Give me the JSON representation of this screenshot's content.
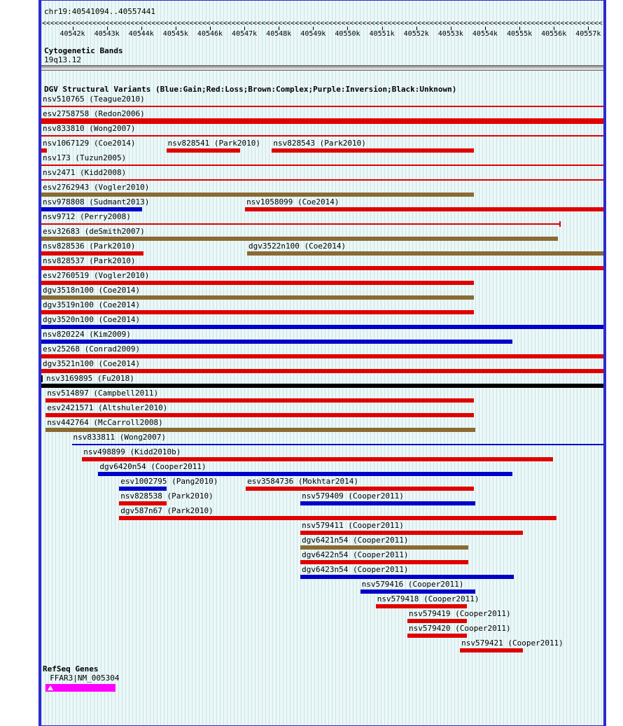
{
  "header": {
    "position_label": "chr19:40541094..40557441"
  },
  "sections": {
    "cytoband_header": "Cytogenetic Bands",
    "dgv_header": "DGV Structural Variants (Blue:Gain;Red:Loss;Brown:Complex;Purple:Inversion;Black:Unknown)",
    "refseq_header": "RefSeq Genes"
  },
  "chart_data": {
    "type": "genome-interval-track",
    "chrom": "chr19",
    "region_start": 40541094,
    "region_end": 40557441,
    "region_label": "chr19:40541094..40557441",
    "cytoband": "19q13.12",
    "direction_arrow": "<",
    "ticks": [
      {
        "bp": 40542000,
        "label": "40542k"
      },
      {
        "bp": 40543000,
        "label": "40543k"
      },
      {
        "bp": 40544000,
        "label": "40544k"
      },
      {
        "bp": 40545000,
        "label": "40545k"
      },
      {
        "bp": 40546000,
        "label": "40546k"
      },
      {
        "bp": 40547000,
        "label": "40547k"
      },
      {
        "bp": 40548000,
        "label": "40548k"
      },
      {
        "bp": 40549000,
        "label": "40549k"
      },
      {
        "bp": 40550000,
        "label": "40550k"
      },
      {
        "bp": 40551000,
        "label": "40551k"
      },
      {
        "bp": 40552000,
        "label": "40552k"
      },
      {
        "bp": 40553000,
        "label": "40553k"
      },
      {
        "bp": 40554000,
        "label": "40554k"
      },
      {
        "bp": 40555000,
        "label": "40555k"
      },
      {
        "bp": 40556000,
        "label": "40556k"
      },
      {
        "bp": 40557000,
        "label": "40557k"
      }
    ],
    "variant_color_map": {
      "gain": "#0000cc",
      "loss": "#e10000",
      "complex": "#8b6a33",
      "inversion": "#7a007a",
      "unknown": "#000000"
    },
    "variant_rows": [
      [
        {
          "label": "nsv510765 (Teague2010)",
          "type": "loss",
          "start": 40541094,
          "end": 40557441,
          "style": "thin"
        }
      ],
      [
        {
          "label": "esv2758758 (Redon2006)",
          "type": "loss",
          "start": 40541094,
          "end": 40557441,
          "style": "xthick"
        }
      ],
      [
        {
          "label": "nsv833810 (Wong2007)",
          "type": "loss",
          "start": 40541094,
          "end": 40557441,
          "style": "thin"
        }
      ],
      [
        {
          "label": "nsv1067129 (Coe2014)",
          "type": "loss",
          "start": 40541094,
          "end": 40541260,
          "style": "thick"
        },
        {
          "label": "nsv828541 (Park2010)",
          "type": "loss",
          "start": 40544730,
          "end": 40546880,
          "style": "thick"
        },
        {
          "label": "nsv828543 (Park2010)",
          "type": "loss",
          "start": 40547800,
          "end": 40553680,
          "style": "thick"
        }
      ],
      [
        {
          "label": "nsv173 (Tuzun2005)",
          "type": "loss",
          "start": 40541094,
          "end": 40557441,
          "style": "thin"
        }
      ],
      [
        {
          "label": "nsv2471 (Kidd2008)",
          "type": "loss",
          "start": 40541094,
          "end": 40557441,
          "style": "thin"
        }
      ],
      [
        {
          "label": "esv2762943 (Vogler2010)",
          "type": "complex",
          "start": 40541094,
          "end": 40553680,
          "style": "thick"
        }
      ],
      [
        {
          "label": "nsv978808 (Sudmant2013)",
          "type": "gain",
          "start": 40541094,
          "end": 40544020,
          "style": "thick"
        },
        {
          "label": "nsv1058099 (Coe2014)",
          "type": "loss",
          "start": 40547020,
          "end": 40557441,
          "style": "thick"
        }
      ],
      [
        {
          "label": "nsv9712 (Perry2008)",
          "type": "loss",
          "start": 40541094,
          "end": 40556170,
          "style": "thin",
          "right_end_tick": true
        }
      ],
      [
        {
          "label": "esv32683 (deSmith2007)",
          "type": "complex",
          "start": 40541094,
          "end": 40556110,
          "style": "thick"
        }
      ],
      [
        {
          "label": "nsv828536 (Park2010)",
          "type": "loss",
          "start": 40541094,
          "end": 40544060,
          "style": "thick"
        },
        {
          "label": "dgv3522n100 (Coe2014)",
          "type": "complex",
          "start": 40547080,
          "end": 40557441,
          "style": "thick"
        }
      ],
      [
        {
          "label": "nsv828537 (Park2010)",
          "type": "loss",
          "start": 40541094,
          "end": 40557441,
          "style": "thick"
        }
      ],
      [
        {
          "label": "esv2760519 (Vogler2010)",
          "type": "loss",
          "start": 40541094,
          "end": 40553680,
          "style": "thick"
        }
      ],
      [
        {
          "label": "dgv3518n100 (Coe2014)",
          "type": "complex",
          "start": 40541094,
          "end": 40553680,
          "style": "thick"
        }
      ],
      [
        {
          "label": "dgv3519n100 (Coe2014)",
          "type": "loss",
          "start": 40541094,
          "end": 40553680,
          "style": "thick"
        }
      ],
      [
        {
          "label": "dgv3520n100 (Coe2014)",
          "type": "gain",
          "start": 40541094,
          "end": 40557441,
          "style": "thick"
        }
      ],
      [
        {
          "label": "nsv820224 (Kim2009)",
          "type": "gain",
          "start": 40541094,
          "end": 40554800,
          "style": "thick"
        }
      ],
      [
        {
          "label": "esv25268 (Conrad2009)",
          "type": "loss",
          "start": 40541094,
          "end": 40557441,
          "style": "thick"
        }
      ],
      [
        {
          "label": "dgv3521n100 (Coe2014)",
          "type": "loss",
          "start": 40541094,
          "end": 40557441,
          "style": "thick"
        }
      ],
      [
        {
          "label": "nsv3169895 (Fu2018)",
          "type": "unknown",
          "start": 40541094,
          "end": 40557441,
          "style": "thick",
          "left_clip_tick": true,
          "label_indent": 5
        }
      ],
      [
        {
          "label": "nsv514897 (Campbell2011)",
          "type": "loss",
          "start": 40541220,
          "end": 40553680,
          "style": "thick"
        }
      ],
      [
        {
          "label": "esv2421571 (Altshuler2010)",
          "type": "loss",
          "start": 40541220,
          "end": 40553680,
          "style": "thick"
        }
      ],
      [
        {
          "label": "nsv442764 (McCarroll2008)",
          "type": "complex",
          "start": 40541220,
          "end": 40553720,
          "style": "thick"
        }
      ],
      [
        {
          "label": "nsv833811 (Wong2007)",
          "type": "gain",
          "start": 40541980,
          "end": 40557441,
          "style": "thin"
        }
      ],
      [
        {
          "label": "nsv498899 (Kidd2010b)",
          "type": "loss",
          "start": 40542280,
          "end": 40555970,
          "style": "thick"
        }
      ],
      [
        {
          "label": "dgv6420n54 (Cooper2011)",
          "type": "gain",
          "start": 40542750,
          "end": 40554800,
          "style": "thick"
        }
      ],
      [
        {
          "label": "esv1002795 (Pang2010)",
          "type": "gain",
          "start": 40543360,
          "end": 40544730,
          "style": "thick"
        },
        {
          "label": "esv3584736 (Mokhtar2014)",
          "type": "loss",
          "start": 40547040,
          "end": 40553680,
          "style": "thick"
        }
      ],
      [
        {
          "label": "nsv828538 (Park2010)",
          "type": "loss",
          "start": 40543360,
          "end": 40544730,
          "style": "thick"
        },
        {
          "label": "nsv579409 (Cooper2011)",
          "type": "gain",
          "start": 40548630,
          "end": 40553720,
          "style": "thick"
        }
      ],
      [
        {
          "label": "dgv587n67 (Park2010)",
          "type": "loss",
          "start": 40543360,
          "end": 40556070,
          "style": "thick"
        }
      ],
      [
        {
          "label": "nsv579411 (Cooper2011)",
          "type": "loss",
          "start": 40548630,
          "end": 40555090,
          "style": "thick"
        }
      ],
      [
        {
          "label": "dgv6421n54 (Cooper2011)",
          "type": "complex",
          "start": 40548630,
          "end": 40553520,
          "style": "thick"
        }
      ],
      [
        {
          "label": "dgv6422n54 (Cooper2011)",
          "type": "loss",
          "start": 40548630,
          "end": 40553520,
          "style": "thick"
        }
      ],
      [
        {
          "label": "dgv6423n54 (Cooper2011)",
          "type": "gain",
          "start": 40548630,
          "end": 40554840,
          "style": "thick"
        }
      ],
      [
        {
          "label": "nsv579416 (Cooper2011)",
          "type": "gain",
          "start": 40550370,
          "end": 40553720,
          "style": "thick"
        }
      ],
      [
        {
          "label": "nsv579418 (Cooper2011)",
          "type": "loss",
          "start": 40550820,
          "end": 40553470,
          "style": "thick"
        }
      ],
      [
        {
          "label": "nsv579419 (Cooper2011)",
          "type": "loss",
          "start": 40551740,
          "end": 40553470,
          "style": "thick"
        }
      ],
      [
        {
          "label": "nsv579420 (Cooper2011)",
          "type": "loss",
          "start": 40551740,
          "end": 40553470,
          "style": "thick"
        }
      ],
      [
        {
          "label": "nsv579421 (Cooper2011)",
          "type": "loss",
          "start": 40553270,
          "end": 40555090,
          "style": "thick"
        }
      ]
    ],
    "genes": [
      {
        "label": "FFAR3|NM_005304",
        "start": 40541220,
        "end": 40543260,
        "color": "#ff00ff"
      }
    ]
  }
}
